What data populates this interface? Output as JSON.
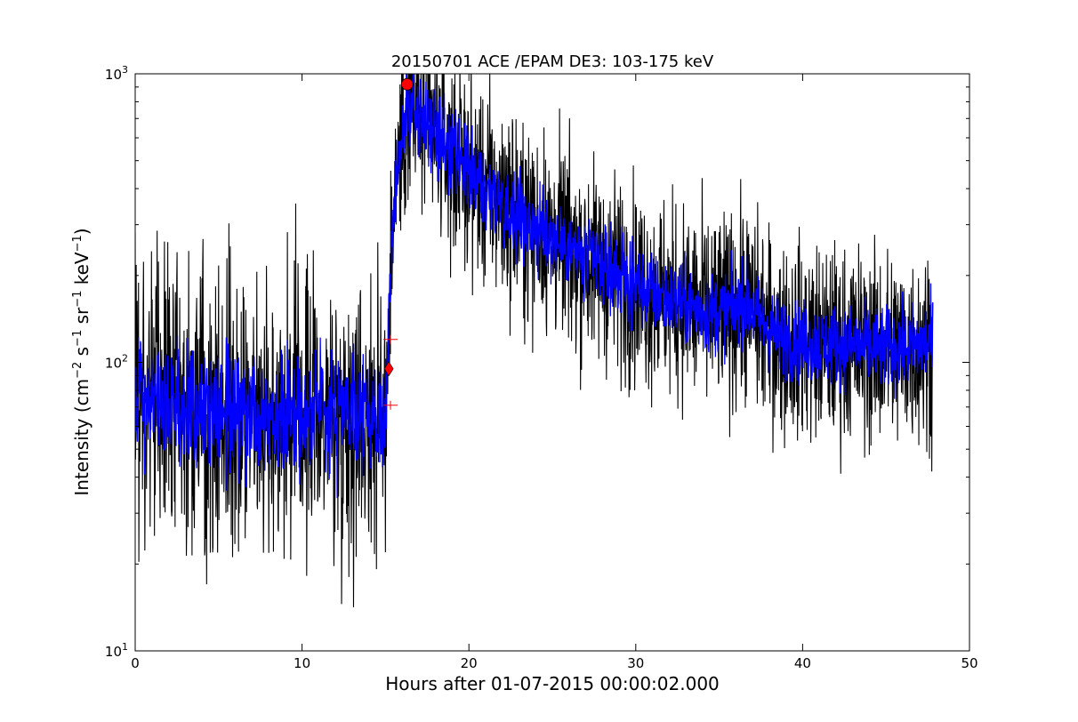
{
  "chart_data": {
    "type": "line",
    "title": "20150701 ACE /EPAM DE3: 103-175 keV",
    "xlabel": "Hours after 01-07-2015 00:00:02.000",
    "ylabel": "Intensity (cm−2 s−1 sr−1 keV−1)",
    "ylabel_parts": [
      "Intensity (cm",
      "−2",
      " s",
      "−1",
      " sr",
      "−1",
      " keV",
      "−1",
      ")"
    ],
    "xlim": [
      0,
      50
    ],
    "ylim": [
      10,
      1000
    ],
    "yscale": "log",
    "grid": false,
    "x_ticks": [
      {
        "value": 0,
        "label": "0"
      },
      {
        "value": 10,
        "label": "10"
      },
      {
        "value": 20,
        "label": "20"
      },
      {
        "value": 30,
        "label": "30"
      },
      {
        "value": 40,
        "label": "40"
      },
      {
        "value": 50,
        "label": "50"
      }
    ],
    "y_ticks": [
      {
        "value": 10,
        "base": "10",
        "exp": "1"
      },
      {
        "value": 100,
        "base": "10",
        "exp": "2"
      },
      {
        "value": 1000,
        "base": "10",
        "exp": "3"
      }
    ],
    "series": [
      {
        "role": "raw",
        "color": "#000000",
        "noise": 0.17,
        "x": [
          0,
          2,
          4,
          6,
          8,
          10,
          12,
          14,
          15.0,
          15.1,
          15.3,
          15.5,
          15.7,
          16.0,
          16.3,
          16.6,
          17.0,
          17.5,
          18,
          19,
          20,
          21,
          22,
          23,
          24,
          25,
          26,
          27,
          28,
          29,
          30,
          31,
          32,
          33,
          34,
          35,
          36,
          36.5,
          37,
          38,
          39,
          40,
          41,
          42,
          43,
          44,
          45,
          46,
          47,
          47.8
        ],
        "y": [
          78,
          70,
          69,
          68,
          68,
          68,
          67,
          66,
          64,
          100,
          200,
          350,
          480,
          620,
          730,
          760,
          700,
          650,
          620,
          520,
          450,
          400,
          360,
          320,
          290,
          270,
          250,
          230,
          215,
          200,
          185,
          175,
          165,
          158,
          150,
          148,
          155,
          165,
          150,
          130,
          120,
          118,
          115,
          115,
          114,
          113,
          112,
          112,
          114,
          120
        ]
      },
      {
        "role": "smoothed",
        "color": "#0000ff",
        "noise": 0.07,
        "x": [
          0,
          2,
          4,
          6,
          8,
          10,
          12,
          14,
          15.0,
          15.1,
          15.3,
          15.5,
          15.7,
          16.0,
          16.3,
          16.6,
          17.0,
          17.5,
          18,
          19,
          20,
          21,
          22,
          23,
          24,
          25,
          26,
          27,
          28,
          29,
          30,
          31,
          32,
          33,
          34,
          35,
          36,
          36.5,
          37,
          38,
          39,
          40,
          41,
          42,
          43,
          44,
          45,
          46,
          47,
          47.8
        ],
        "y": [
          78,
          70,
          69,
          68,
          68,
          68,
          67,
          66,
          64,
          100,
          200,
          350,
          480,
          620,
          730,
          760,
          700,
          650,
          620,
          520,
          450,
          400,
          360,
          320,
          290,
          270,
          250,
          230,
          215,
          200,
          185,
          175,
          165,
          158,
          150,
          148,
          155,
          165,
          150,
          130,
          120,
          118,
          115,
          115,
          114,
          113,
          112,
          112,
          114,
          120
        ]
      }
    ],
    "markers": [
      {
        "name": "peak-marker",
        "shape": "circle",
        "color": "#ff0000",
        "x": 16.3,
        "y": 920
      },
      {
        "name": "onset-marker",
        "shape": "diamond",
        "color": "#ff0000",
        "x": 15.2,
        "y": 95
      },
      {
        "name": "onset-upper-cross",
        "shape": "plus",
        "color": "#ff0000",
        "x": 15.3,
        "y": 120
      },
      {
        "name": "onset-lower-cross",
        "shape": "plus",
        "color": "#ff0000",
        "x": 15.3,
        "y": 71
      }
    ]
  }
}
